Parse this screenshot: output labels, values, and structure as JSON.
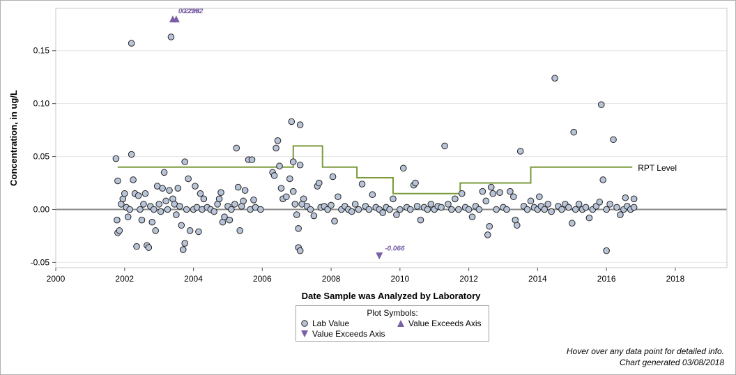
{
  "chart_data": {
    "type": "scatter",
    "title": "",
    "xlabel": "Date Sample was Analyzed by Laboratory",
    "ylabel": "Concentration, in ug/L",
    "xlim": [
      2000,
      2019.5
    ],
    "ylim": [
      -0.055,
      0.19
    ],
    "x_ticks": [
      "2000",
      "2002",
      "2004",
      "2006",
      "2008",
      "2010",
      "2012",
      "2014",
      "2016",
      "2018"
    ],
    "y_ticks": [
      "-0.05",
      "0.00",
      "0.05",
      "0.10",
      "0.15"
    ],
    "grid": "horizontal",
    "zero_line": 0,
    "reference_line": {
      "name": "RPT Level",
      "color": "#7a9a3a",
      "steps": [
        {
          "x0": 2001.8,
          "x1": 2006.9,
          "y": 0.04
        },
        {
          "x0": 2006.9,
          "x1": 2007.75,
          "y": 0.06
        },
        {
          "x0": 2007.75,
          "x1": 2008.75,
          "y": 0.04
        },
        {
          "x0": 2008.75,
          "x1": 2009.8,
          "y": 0.03
        },
        {
          "x0": 2009.8,
          "x1": 2011.75,
          "y": 0.015
        },
        {
          "x0": 2011.75,
          "x1": 2013.8,
          "y": 0.025
        },
        {
          "x0": 2013.8,
          "x1": 2016.75,
          "y": 0.04
        }
      ]
    },
    "series": [
      {
        "name": "Lab Value",
        "marker": "circle",
        "color": "#b8c4d8",
        "points": [
          [
            2001.75,
            0.048
          ],
          [
            2001.78,
            -0.01
          ],
          [
            2001.8,
            -0.022
          ],
          [
            2001.85,
            -0.02
          ],
          [
            2001.8,
            0.027
          ],
          [
            2001.9,
            0.005
          ],
          [
            2001.95,
            0.01
          ],
          [
            2002.0,
            0.015
          ],
          [
            2002.05,
            0.002
          ],
          [
            2002.1,
            -0.007
          ],
          [
            2002.15,
            0.0
          ],
          [
            2002.2,
            0.157
          ],
          [
            2002.2,
            0.052
          ],
          [
            2002.25,
            0.028
          ],
          [
            2002.3,
            0.015
          ],
          [
            2002.35,
            -0.035
          ],
          [
            2002.4,
            0.013
          ],
          [
            2002.45,
            0.0
          ],
          [
            2002.5,
            -0.01
          ],
          [
            2002.55,
            0.005
          ],
          [
            2002.6,
            0.015
          ],
          [
            2002.65,
            -0.034
          ],
          [
            2002.7,
            -0.036
          ],
          [
            2002.75,
            0.003
          ],
          [
            2002.8,
            -0.012
          ],
          [
            2002.85,
            0.0
          ],
          [
            2002.9,
            -0.02
          ],
          [
            2002.95,
            0.022
          ],
          [
            2003.0,
            0.005
          ],
          [
            2003.05,
            -0.002
          ],
          [
            2003.1,
            0.02
          ],
          [
            2003.15,
            0.035
          ],
          [
            2003.2,
            0.008
          ],
          [
            2003.25,
            0.0
          ],
          [
            2003.3,
            0.018
          ],
          [
            2003.35,
            0.163
          ],
          [
            2003.4,
            0.01
          ],
          [
            2003.45,
            0.005
          ],
          [
            2003.5,
            -0.005
          ],
          [
            2003.55,
            0.02
          ],
          [
            2003.6,
            0.003
          ],
          [
            2003.65,
            -0.015
          ],
          [
            2003.7,
            -0.038
          ],
          [
            2003.75,
            -0.032
          ],
          [
            2003.75,
            0.045
          ],
          [
            2003.8,
            0.0
          ],
          [
            2003.85,
            0.029
          ],
          [
            2003.9,
            -0.02
          ],
          [
            2004.0,
            0.0
          ],
          [
            2004.05,
            0.022
          ],
          [
            2004.1,
            0.002
          ],
          [
            2004.15,
            -0.021
          ],
          [
            2004.2,
            0.015
          ],
          [
            2004.25,
            0.0
          ],
          [
            2004.3,
            0.01
          ],
          [
            2004.4,
            0.002
          ],
          [
            2004.5,
            0.0
          ],
          [
            2004.6,
            -0.002
          ],
          [
            2004.7,
            0.005
          ],
          [
            2004.75,
            0.01
          ],
          [
            2004.8,
            0.016
          ],
          [
            2004.85,
            -0.012
          ],
          [
            2004.9,
            -0.007
          ],
          [
            2005.0,
            0.003
          ],
          [
            2005.05,
            -0.01
          ],
          [
            2005.1,
            0.0
          ],
          [
            2005.2,
            0.005
          ],
          [
            2005.25,
            0.058
          ],
          [
            2005.3,
            0.021
          ],
          [
            2005.35,
            -0.02
          ],
          [
            2005.4,
            0.003
          ],
          [
            2005.45,
            0.008
          ],
          [
            2005.5,
            0.018
          ],
          [
            2005.6,
            0.047
          ],
          [
            2005.65,
            0.0
          ],
          [
            2005.7,
            0.047
          ],
          [
            2005.75,
            0.009
          ],
          [
            2005.8,
            0.002
          ],
          [
            2005.95,
            0.0
          ],
          [
            2006.3,
            0.035
          ],
          [
            2006.35,
            0.032
          ],
          [
            2006.4,
            0.058
          ],
          [
            2006.45,
            0.065
          ],
          [
            2006.5,
            0.041
          ],
          [
            2006.55,
            0.02
          ],
          [
            2006.6,
            0.01
          ],
          [
            2006.7,
            0.012
          ],
          [
            2006.8,
            0.029
          ],
          [
            2006.85,
            0.083
          ],
          [
            2006.9,
            0.045
          ],
          [
            2006.9,
            0.017
          ],
          [
            2006.95,
            0.005
          ],
          [
            2007.0,
            -0.005
          ],
          [
            2007.05,
            -0.018
          ],
          [
            2007.05,
            -0.036
          ],
          [
            2007.1,
            -0.039
          ],
          [
            2007.1,
            0.08
          ],
          [
            2007.1,
            0.042
          ],
          [
            2007.15,
            0.005
          ],
          [
            2007.2,
            0.01
          ],
          [
            2007.3,
            0.003
          ],
          [
            2007.4,
            0.0
          ],
          [
            2007.5,
            -0.006
          ],
          [
            2007.6,
            0.022
          ],
          [
            2007.65,
            0.025
          ],
          [
            2007.7,
            0.002
          ],
          [
            2007.8,
            0.003
          ],
          [
            2007.9,
            0.0
          ],
          [
            2008.0,
            0.004
          ],
          [
            2008.05,
            0.031
          ],
          [
            2008.1,
            -0.011
          ],
          [
            2008.2,
            0.012
          ],
          [
            2008.3,
            0.0
          ],
          [
            2008.4,
            0.003
          ],
          [
            2008.5,
            0.0
          ],
          [
            2008.6,
            -0.002
          ],
          [
            2008.7,
            0.005
          ],
          [
            2008.8,
            0.0
          ],
          [
            2008.9,
            0.024
          ],
          [
            2009.0,
            0.003
          ],
          [
            2009.1,
            0.0
          ],
          [
            2009.2,
            0.014
          ],
          [
            2009.3,
            0.002
          ],
          [
            2009.4,
            0.0
          ],
          [
            2009.5,
            -0.003
          ],
          [
            2009.6,
            0.002
          ],
          [
            2009.7,
            0.0
          ],
          [
            2009.8,
            0.01
          ],
          [
            2009.9,
            -0.005
          ],
          [
            2010.0,
            0.0
          ],
          [
            2010.1,
            0.039
          ],
          [
            2010.2,
            0.002
          ],
          [
            2010.3,
            0.0
          ],
          [
            2010.4,
            0.023
          ],
          [
            2010.45,
            0.025
          ],
          [
            2010.5,
            0.003
          ],
          [
            2010.6,
            -0.01
          ],
          [
            2010.7,
            0.002
          ],
          [
            2010.8,
            0.0
          ],
          [
            2010.9,
            0.005
          ],
          [
            2011.0,
            0.0
          ],
          [
            2011.1,
            0.003
          ],
          [
            2011.2,
            0.002
          ],
          [
            2011.3,
            0.06
          ],
          [
            2011.4,
            0.005
          ],
          [
            2011.5,
            0.0
          ],
          [
            2011.6,
            0.01
          ],
          [
            2011.7,
            0.0
          ],
          [
            2011.8,
            0.015
          ],
          [
            2011.9,
            0.002
          ],
          [
            2012.0,
            0.0
          ],
          [
            2012.1,
            -0.007
          ],
          [
            2012.2,
            0.003
          ],
          [
            2012.3,
            0.0
          ],
          [
            2012.4,
            0.017
          ],
          [
            2012.5,
            0.008
          ],
          [
            2012.55,
            -0.024
          ],
          [
            2012.6,
            -0.016
          ],
          [
            2012.65,
            0.021
          ],
          [
            2012.7,
            0.015
          ],
          [
            2012.8,
            0.0
          ],
          [
            2012.9,
            0.016
          ],
          [
            2013.0,
            0.002
          ],
          [
            2013.1,
            0.0
          ],
          [
            2013.2,
            0.017
          ],
          [
            2013.3,
            0.012
          ],
          [
            2013.35,
            -0.01
          ],
          [
            2013.4,
            -0.015
          ],
          [
            2013.5,
            0.055
          ],
          [
            2013.6,
            0.003
          ],
          [
            2013.7,
            0.0
          ],
          [
            2013.8,
            0.008
          ],
          [
            2013.9,
            0.002
          ],
          [
            2014.0,
            0.0
          ],
          [
            2014.05,
            0.012
          ],
          [
            2014.1,
            0.003
          ],
          [
            2014.2,
            0.0
          ],
          [
            2014.3,
            0.005
          ],
          [
            2014.4,
            -0.002
          ],
          [
            2014.5,
            0.124
          ],
          [
            2014.6,
            0.003
          ],
          [
            2014.7,
            0.0
          ],
          [
            2014.8,
            0.005
          ],
          [
            2014.9,
            0.002
          ],
          [
            2015.0,
            -0.013
          ],
          [
            2015.05,
            0.073
          ],
          [
            2015.1,
            0.0
          ],
          [
            2015.2,
            0.005
          ],
          [
            2015.3,
            0.0
          ],
          [
            2015.4,
            0.002
          ],
          [
            2015.5,
            -0.008
          ],
          [
            2015.6,
            0.0
          ],
          [
            2015.7,
            0.003
          ],
          [
            2015.8,
            0.007
          ],
          [
            2015.85,
            0.099
          ],
          [
            2015.9,
            0.028
          ],
          [
            2016.0,
            -0.039
          ],
          [
            2016.0,
            0.0
          ],
          [
            2016.1,
            0.005
          ],
          [
            2016.2,
            0.066
          ],
          [
            2016.3,
            0.002
          ],
          [
            2016.4,
            -0.005
          ],
          [
            2016.5,
            0.0
          ],
          [
            2016.55,
            0.011
          ],
          [
            2016.6,
            0.003
          ],
          [
            2016.7,
            0.0
          ],
          [
            2016.8,
            0.002
          ],
          [
            2016.8,
            0.01
          ]
        ]
      },
      {
        "name": "Value Exceeds Axis",
        "marker": "triangle-up",
        "color": "#7b5fa5",
        "points": [
          [
            2003.4,
            0.18
          ],
          [
            2003.5,
            0.18
          ]
        ],
        "labels": [
          "0.2298",
          "0.2292"
        ]
      },
      {
        "name": "Value Exceeds Axis",
        "marker": "triangle-down",
        "color": "#7b5fa5",
        "points": [
          [
            2009.4,
            -0.044
          ]
        ],
        "labels": [
          "-0.066"
        ]
      }
    ]
  },
  "legend": {
    "title": "Plot Symbols:",
    "items": [
      "Lab Value",
      "Value Exceeds Axis",
      "Value Exceeds Axis"
    ]
  },
  "ref_label": "RPT Level",
  "footnotes": {
    "hover": "Hover over any data point for detailed info.",
    "generated": "Chart generated 03/08/2018"
  }
}
